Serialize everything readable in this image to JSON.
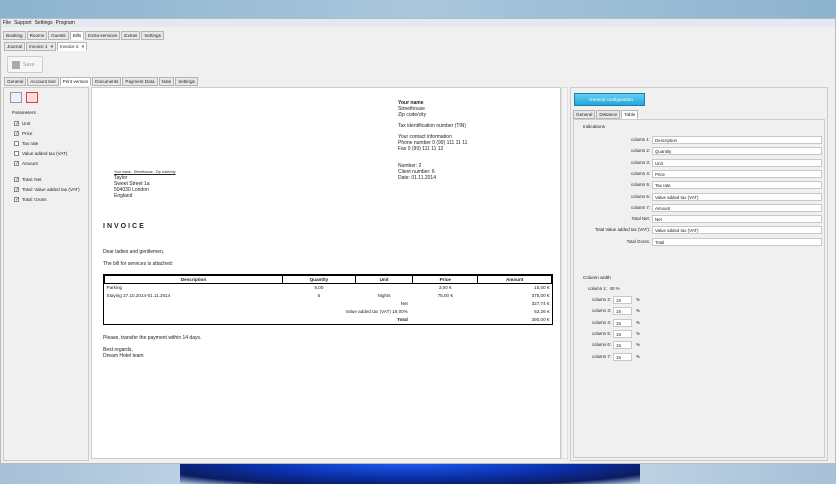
{
  "menu": [
    "File",
    "Support",
    "Settings",
    "Program"
  ],
  "top_tabs": [
    "Booking",
    "Rooms",
    "Guests",
    "Bills",
    "Extra-services",
    "Extras",
    "Settings"
  ],
  "top_tab_active": 3,
  "doc_tabs": [
    "Journal",
    "Invoice 1",
    "Invoice 2"
  ],
  "doc_tab_active": 2,
  "save_label": "Save",
  "inner_tabs": [
    "General",
    "Account text",
    "Print version",
    "Documents",
    "Payment Data",
    "Note",
    "Settings"
  ],
  "inner_tab_active": 2,
  "parameters": {
    "title": "Parameters",
    "items": [
      {
        "label": "Unit",
        "checked": true
      },
      {
        "label": "Price",
        "checked": true
      },
      {
        "label": "Tax rate",
        "checked": false
      },
      {
        "label": "Value added tax (VAT)",
        "checked": false
      },
      {
        "label": "Amount",
        "checked": true
      }
    ],
    "totals": [
      {
        "label": "Total: Net",
        "checked": true
      },
      {
        "label": "Total: Value added tax (VAT)",
        "checked": true
      },
      {
        "label": "Total: Gross",
        "checked": true
      }
    ]
  },
  "invoice": {
    "sender": {
      "name": "Your name",
      "street": "Streethouse",
      "city": "Zip code/city",
      "tin": "Tax identification number (TIN)",
      "contact": "Your contact information",
      "phone": "Phone number 0 (99) 111 11 11",
      "fax": "Fax 0 (99) 111 11 12"
    },
    "meta": {
      "number": "Number: 2",
      "client": "Client number: 6",
      "date": "Date: 01.11.2014"
    },
    "return_line": "Your name - Streethouse - Zip code/city",
    "recipient": [
      "Taylor",
      "Sweet Street 1a",
      "504030 London",
      "England"
    ],
    "title": "INVOICE",
    "greeting": "Dear ladies and gentlemen,",
    "intro": "The bill for services is attached:",
    "columns": [
      "Description",
      "Quantity",
      "Unit",
      "Price",
      "Amount"
    ],
    "rows": [
      [
        "Parking",
        "5,00",
        "",
        "3,00 €",
        "15,00 €"
      ],
      [
        "Staying 27.10.2014-01.11.2014",
        "5",
        "Nights",
        "75,00 €",
        "375,00 €"
      ]
    ],
    "totals": [
      [
        "Net",
        "327,74 €"
      ],
      [
        "Value added tax (VAT) 19,00%",
        "62,26 €"
      ],
      [
        "Total",
        "390,00 €"
      ]
    ],
    "payment": "Please, transfer the payment within 14 days.",
    "regards": "Best regards,",
    "signature": "Dream Hotel team"
  },
  "config": {
    "button": "General configuration",
    "tabs": [
      "General",
      "Distance",
      "Table"
    ],
    "tab_active": 2,
    "indications_title": "Indications",
    "indications": [
      [
        "column 1:",
        "Description"
      ],
      [
        "column 2:",
        "Quantity"
      ],
      [
        "column 3:",
        "Unit"
      ],
      [
        "column 4:",
        "Price"
      ],
      [
        "column 5:",
        "Tax rate"
      ],
      [
        "column 6:",
        "Value added tax (VAT)"
      ],
      [
        "column 7:",
        "Amount"
      ],
      [
        "Total Net:",
        "Net"
      ],
      [
        "Total Value added tax (VAT):",
        "Value added tax (VAT)"
      ],
      [
        "Total Gross:",
        "Total"
      ]
    ],
    "width_title": "Column width",
    "col1": {
      "label": "column 1:",
      "value": "40",
      "unit": "%"
    },
    "widths": [
      [
        "column 2:",
        "15"
      ],
      [
        "column 3:",
        "15"
      ],
      [
        "column 4:",
        "15"
      ],
      [
        "column 5:",
        "15"
      ],
      [
        "column 6:",
        "15"
      ],
      [
        "column 7:",
        "15"
      ]
    ],
    "unit": "%"
  }
}
